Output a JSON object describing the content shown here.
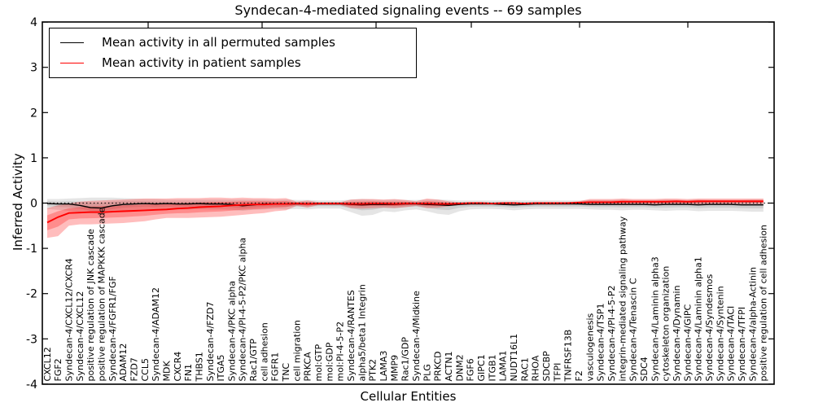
{
  "chart_data": {
    "type": "line",
    "title": "Syndecan-4-mediated signaling events -- 69 samples",
    "xlabel": "Cellular Entities",
    "ylabel": "Inferred Activity",
    "ylim": [
      -4,
      4
    ],
    "grid": false,
    "legend_position": "upper left",
    "zero_line": 0,
    "y_tick_labels": [
      "4",
      "3",
      "2",
      "1",
      "0",
      "-1",
      "-2",
      "-3",
      "-4"
    ],
    "categories": [
      "CXCL12",
      "FGF2",
      "Syndecan-4/CXCL12/CXCR4",
      "Syndecan-4/CXCL12",
      "positive regulation of JNK cascade",
      "positive regulation of MAPKKK cascade",
      "Syndecan-4/FGFR1/FGF",
      "ADAM12",
      "FZD7",
      "CCL5",
      "Syndecan-4/ADAM12",
      "MDK",
      "CXCR4",
      "FN1",
      "THBS1",
      "Syndecan-4/FZD7",
      "ITGA5",
      "Syndecan-4/PKC alpha",
      "Syndecan-4/PI-4-5-P2/PKC alpha",
      "Rac1/GTP",
      "cell adhesion",
      "FGFR1",
      "TNC",
      "cell migration",
      "PRKCA",
      "mol:GTP",
      "mol:GDP",
      "mol:PI-4-5-P2",
      "Syndecan-4/RANTES",
      "alpha5/beta1 Integrin",
      "PTK2",
      "LAMA3",
      "MMP9",
      "Rac1/GDP",
      "Syndecan-4/Midkine",
      "PLG",
      "PRKCD",
      "ACTN1",
      "DNM2",
      "FGF6",
      "GIPC1",
      "ITGB1",
      "LAMA1",
      "NUDT16L1",
      "RAC1",
      "RHOA",
      "SDCBP",
      "TFPI",
      "TNFRSF13B",
      "F2",
      "vasculogenesis",
      "Syndecan-4/TSP1",
      "Syndecan-4/PI-4-5-P2",
      "integrin-mediated signaling pathway",
      "Syndecan-4/Tenascin C",
      "SDC4",
      "Syndecan-4/Laminin alpha3",
      "cytoskeleton organization",
      "Syndecan-4/Dynamin",
      "Syndecan-4/GIPC",
      "Syndecan-4/Laminin alpha1",
      "Syndecan-4/Syndesmos",
      "Syndecan-4/Syntenin",
      "Syndecan-4/TACI",
      "Syndecan-4/TFPI",
      "Syndecan-4/alpha-Actinin",
      "positive regulation of cell adhesion"
    ],
    "series": [
      {
        "name": "Mean activity in all permuted samples",
        "color": "#000000",
        "values": [
          -0.01,
          -0.02,
          -0.02,
          -0.05,
          -0.1,
          -0.11,
          -0.06,
          -0.03,
          -0.02,
          -0.01,
          -0.02,
          -0.01,
          -0.02,
          -0.02,
          -0.01,
          -0.02,
          -0.02,
          -0.03,
          -0.06,
          -0.04,
          -0.02,
          -0.02,
          -0.02,
          -0.02,
          -0.02,
          -0.02,
          -0.02,
          -0.02,
          -0.03,
          -0.04,
          -0.03,
          -0.03,
          -0.03,
          -0.02,
          -0.02,
          -0.03,
          -0.04,
          -0.05,
          -0.03,
          -0.02,
          -0.02,
          -0.02,
          -0.03,
          -0.04,
          -0.03,
          -0.02,
          -0.02,
          -0.02,
          -0.02,
          -0.02,
          -0.03,
          -0.03,
          -0.03,
          -0.03,
          -0.03,
          -0.03,
          -0.04,
          -0.03,
          -0.03,
          -0.03,
          -0.04,
          -0.03,
          -0.03,
          -0.03,
          -0.04,
          -0.04,
          -0.04
        ]
      },
      {
        "name": "Mean activity in patient samples",
        "color": "#ff0000",
        "values": [
          -0.43,
          -0.31,
          -0.22,
          -0.21,
          -0.2,
          -0.2,
          -0.19,
          -0.18,
          -0.17,
          -0.16,
          -0.15,
          -0.14,
          -0.12,
          -0.11,
          -0.09,
          -0.08,
          -0.07,
          -0.05,
          -0.04,
          -0.03,
          -0.03,
          -0.02,
          -0.02,
          -0.01,
          -0.02,
          -0.01,
          -0.01,
          -0.01,
          -0.02,
          -0.02,
          -0.01,
          -0.01,
          -0.02,
          -0.01,
          -0.01,
          -0.01,
          -0.02,
          -0.02,
          -0.01,
          0.0,
          0.0,
          -0.01,
          0.0,
          0.0,
          -0.01,
          0.0,
          0.0,
          0.0,
          0.0,
          0.01,
          0.02,
          0.02,
          0.02,
          0.03,
          0.03,
          0.03,
          0.03,
          0.03,
          0.04,
          0.03,
          0.04,
          0.04,
          0.04,
          0.04,
          0.04,
          0.04,
          0.04
        ]
      }
    ],
    "bands": [
      {
        "name": "permuted-std-band",
        "color": "#000000",
        "alpha": 0.1,
        "upper": [
          0.09,
          0.09,
          0.1,
          0.11,
          0.12,
          0.12,
          0.12,
          0.11,
          0.1,
          0.09,
          0.09,
          0.08,
          0.08,
          0.08,
          0.08,
          0.08,
          0.08,
          0.08,
          0.08,
          0.08,
          0.08,
          0.07,
          0.08,
          0.07,
          0.07,
          0.06,
          0.06,
          0.06,
          0.08,
          0.09,
          0.08,
          0.07,
          0.08,
          0.07,
          0.07,
          0.08,
          0.08,
          0.07,
          0.06,
          0.06,
          0.06,
          0.06,
          0.06,
          0.06,
          0.06,
          0.06,
          0.06,
          0.06,
          0.06,
          0.06,
          0.07,
          0.07,
          0.07,
          0.08,
          0.07,
          0.07,
          0.07,
          0.08,
          0.07,
          0.07,
          0.08,
          0.07,
          0.07,
          0.07,
          0.07,
          0.08,
          0.08
        ],
        "lower": [
          -0.13,
          -0.15,
          -0.17,
          -0.2,
          -0.23,
          -0.24,
          -0.21,
          -0.18,
          -0.16,
          -0.15,
          -0.15,
          -0.14,
          -0.14,
          -0.14,
          -0.13,
          -0.14,
          -0.14,
          -0.15,
          -0.17,
          -0.15,
          -0.14,
          -0.13,
          -0.14,
          -0.13,
          -0.14,
          -0.12,
          -0.12,
          -0.12,
          -0.2,
          -0.28,
          -0.26,
          -0.18,
          -0.2,
          -0.16,
          -0.14,
          -0.18,
          -0.24,
          -0.26,
          -0.18,
          -0.14,
          -0.13,
          -0.13,
          -0.14,
          -0.16,
          -0.14,
          -0.13,
          -0.13,
          -0.13,
          -0.13,
          -0.13,
          -0.14,
          -0.15,
          -0.15,
          -0.16,
          -0.15,
          -0.15,
          -0.16,
          -0.17,
          -0.16,
          -0.16,
          -0.18,
          -0.17,
          -0.17,
          -0.17,
          -0.18,
          -0.19,
          -0.19
        ]
      },
      {
        "name": "patient-std-band",
        "color": "#ff0000",
        "alpha": 0.26,
        "upper": [
          -0.11,
          -0.05,
          -0.01,
          0.03,
          0.05,
          0.06,
          0.07,
          0.08,
          0.09,
          0.1,
          0.1,
          0.1,
          0.11,
          0.11,
          0.11,
          0.12,
          0.12,
          0.11,
          0.12,
          0.11,
          0.11,
          0.1,
          0.11,
          0.03,
          0.06,
          0.02,
          0.02,
          0.02,
          0.08,
          0.09,
          0.09,
          0.08,
          0.09,
          0.07,
          0.04,
          0.1,
          0.08,
          0.04,
          0.02,
          0.01,
          0.01,
          0.01,
          0.01,
          0.01,
          0.01,
          0.01,
          0.01,
          0.01,
          0.02,
          0.04,
          0.09,
          0.09,
          0.09,
          0.1,
          0.09,
          0.09,
          0.09,
          0.1,
          0.1,
          0.09,
          0.1,
          0.1,
          0.1,
          0.1,
          0.1,
          0.1,
          0.1
        ],
        "lower": [
          -0.77,
          -0.73,
          -0.5,
          -0.47,
          -0.47,
          -0.46,
          -0.45,
          -0.44,
          -0.42,
          -0.4,
          -0.36,
          -0.33,
          -0.33,
          -0.33,
          -0.32,
          -0.31,
          -0.3,
          -0.28,
          -0.26,
          -0.24,
          -0.22,
          -0.18,
          -0.16,
          -0.06,
          -0.1,
          -0.04,
          -0.04,
          -0.04,
          -0.11,
          -0.12,
          -0.11,
          -0.1,
          -0.11,
          -0.09,
          -0.06,
          -0.11,
          -0.1,
          -0.07,
          -0.04,
          -0.02,
          -0.02,
          -0.02,
          -0.02,
          -0.02,
          -0.02,
          -0.02,
          -0.02,
          -0.02,
          -0.02,
          -0.02,
          -0.03,
          -0.03,
          -0.03,
          -0.04,
          -0.03,
          -0.03,
          -0.03,
          -0.03,
          -0.03,
          -0.03,
          -0.03,
          -0.02,
          -0.02,
          -0.02,
          -0.02,
          -0.02,
          -0.02
        ]
      }
    ]
  },
  "legend": {
    "items": [
      {
        "label": "Mean activity in all permuted samples",
        "color": "#000000"
      },
      {
        "label": "Mean activity in patient samples",
        "color": "#ff0000"
      }
    ]
  }
}
